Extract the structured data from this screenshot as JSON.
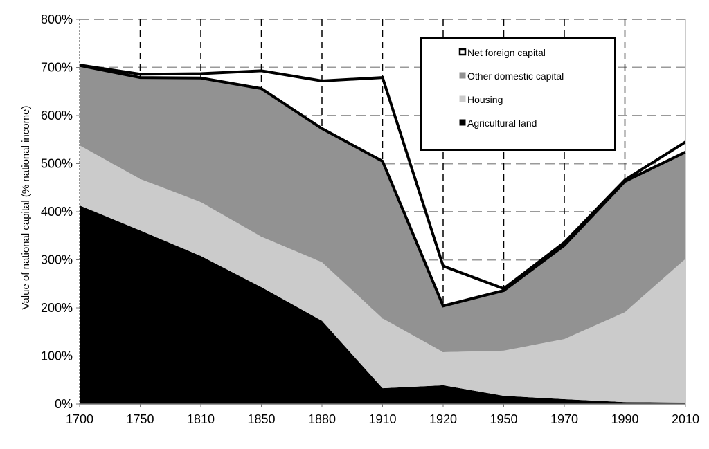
{
  "chart_data": {
    "type": "area",
    "stacked": true,
    "title": "",
    "xlabel": "",
    "ylabel": "Value of national capital (% national income)",
    "categories": [
      "1700",
      "1750",
      "1810",
      "1850",
      "1880",
      "1910",
      "1920",
      "1950",
      "1970",
      "1990",
      "2010"
    ],
    "ylim": [
      0,
      800
    ],
    "yticks": [
      "0%",
      "100%",
      "200%",
      "300%",
      "400%",
      "500%",
      "600%",
      "700%",
      "800%"
    ],
    "grid": true,
    "legend_position": "top-right",
    "series": [
      {
        "name": "Agricultural land",
        "color": "#000000",
        "values": [
          413,
          361,
          308,
          243,
          173,
          33,
          39,
          17,
          10,
          4,
          3
        ]
      },
      {
        "name": "Housing",
        "color": "#cbcbcb",
        "values": [
          125,
          107,
          112,
          105,
          122,
          145,
          69,
          94,
          125,
          187,
          299
        ]
      },
      {
        "name": "Other domestic capital",
        "color": "#929292",
        "values": [
          166,
          211,
          258,
          308,
          278,
          327,
          96,
          125,
          195,
          272,
          222
        ]
      },
      {
        "name": "Net foreign capital",
        "color": "#ffffff",
        "values": [
          1,
          7,
          9,
          37,
          99,
          174,
          83,
          4,
          6,
          3,
          21
        ]
      }
    ],
    "legend_order": [
      "Net foreign capital",
      "Other domestic capital",
      "Housing",
      "Agricultural land"
    ]
  }
}
